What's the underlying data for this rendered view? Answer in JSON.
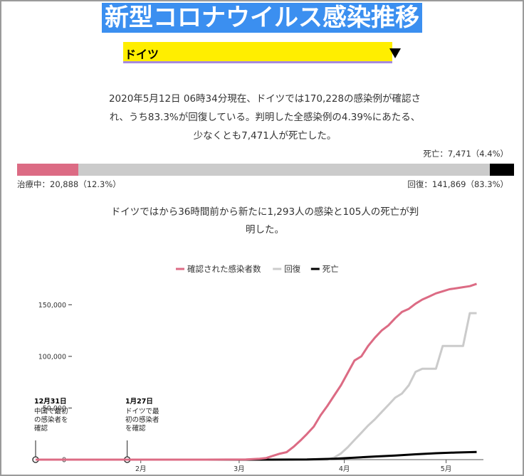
{
  "header": {
    "title": "新型コロナウイルス感染推移"
  },
  "country_select": {
    "selected": "ドイツ"
  },
  "summary": {
    "line1": "2020年5月12日 06時34分現在、ドイツでは170,228の感染例が確認さ",
    "line2": "れ、うち83.3%が回復している。判明した全感染例の4.39%にあたる、",
    "line3": "少なくとも7,471人が死亡した。"
  },
  "status": {
    "death_label": "死亡：7,471（4.4%）",
    "active_label": "治療中：20,888（12.3%）",
    "recovered_label": "回復：141,869（83.3%）",
    "active_share": 0.123,
    "recovered_share": 0.833,
    "death_share": 0.044
  },
  "new_cases": {
    "line1": "ドイツではから36時間前から新たに1,293人の感染と105人の死亡が判",
    "line2": "明した。"
  },
  "colors": {
    "title_bg": "#3b8ff0",
    "select_bg": "#ffee00",
    "confirmed": "#dc6b84",
    "recovered": "#cbcbcb",
    "deaths": "#000000"
  },
  "chart_data": {
    "type": "line",
    "legend": [
      "確認された感染者数",
      "回復",
      "死亡"
    ],
    "legend_position": "top-center",
    "x_ticks": [
      "2月",
      "3月",
      "4月",
      "5月"
    ],
    "y_ticks": [
      "0",
      "50,000",
      "100,000",
      "150,000"
    ],
    "ylim": [
      0,
      175000
    ],
    "xlim_days": [
      0,
      132
    ],
    "x_tick_days": [
      31,
      60,
      91,
      121
    ],
    "annotations": [
      {
        "date": "12月31日",
        "text": [
          "中国で最初",
          "の感染者を",
          "確認"
        ],
        "day": 0
      },
      {
        "date": "1月27日",
        "text": [
          "ドイツで最",
          "初の感染者",
          "を確認"
        ],
        "day": 27
      }
    ],
    "series": [
      {
        "name": "確認された感染者数",
        "points": [
          [
            0,
            0
          ],
          [
            27,
            1
          ],
          [
            35,
            10
          ],
          [
            50,
            16
          ],
          [
            62,
            130
          ],
          [
            66,
            800
          ],
          [
            68,
            1600
          ],
          [
            70,
            3700
          ],
          [
            72,
            5800
          ],
          [
            74,
            7200
          ],
          [
            76,
            12300
          ],
          [
            78,
            18300
          ],
          [
            80,
            24900
          ],
          [
            82,
            32000
          ],
          [
            84,
            43000
          ],
          [
            86,
            52000
          ],
          [
            88,
            62000
          ],
          [
            90,
            72000
          ],
          [
            92,
            84000
          ],
          [
            94,
            96000
          ],
          [
            96,
            100000
          ],
          [
            98,
            110000
          ],
          [
            100,
            118000
          ],
          [
            102,
            125000
          ],
          [
            104,
            130000
          ],
          [
            106,
            137000
          ],
          [
            108,
            143000
          ],
          [
            110,
            146000
          ],
          [
            112,
            151000
          ],
          [
            114,
            155000
          ],
          [
            116,
            158000
          ],
          [
            118,
            161000
          ],
          [
            120,
            163000
          ],
          [
            122,
            165000
          ],
          [
            124,
            166000
          ],
          [
            126,
            167000
          ],
          [
            128,
            168000
          ],
          [
            130,
            170228
          ]
        ]
      },
      {
        "name": "回復",
        "points": [
          [
            0,
            0
          ],
          [
            86,
            0
          ],
          [
            88,
            2000
          ],
          [
            90,
            6000
          ],
          [
            92,
            12000
          ],
          [
            94,
            19000
          ],
          [
            96,
            26000
          ],
          [
            98,
            33000
          ],
          [
            100,
            39000
          ],
          [
            102,
            46000
          ],
          [
            104,
            53000
          ],
          [
            106,
            60000
          ],
          [
            108,
            64000
          ],
          [
            110,
            72000
          ],
          [
            112,
            85000
          ],
          [
            114,
            88000
          ],
          [
            118,
            88000
          ],
          [
            120,
            110000
          ],
          [
            124,
            110000
          ],
          [
            126,
            110000
          ],
          [
            128,
            141869
          ],
          [
            130,
            141869
          ]
        ]
      },
      {
        "name": "死亡",
        "points": [
          [
            0,
            0
          ],
          [
            68,
            0
          ],
          [
            80,
            150
          ],
          [
            88,
            900
          ],
          [
            94,
            1900
          ],
          [
            100,
            3000
          ],
          [
            106,
            4000
          ],
          [
            112,
            5200
          ],
          [
            118,
            6200
          ],
          [
            124,
            6900
          ],
          [
            130,
            7471
          ]
        ]
      }
    ]
  }
}
